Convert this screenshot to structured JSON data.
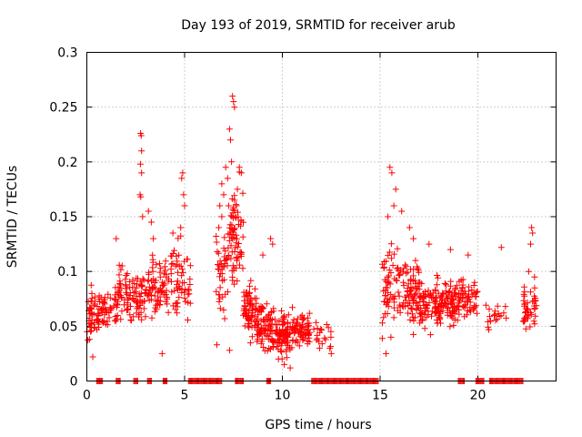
{
  "chart_data": {
    "type": "scatter",
    "title": "Day 193 of 2019, SRMTID for receiver arub",
    "xlabel": "GPS time / hours",
    "ylabel": "SRMTID / TECUs",
    "xlim": [
      0,
      24
    ],
    "ylim": [
      0,
      0.3
    ],
    "xticks": [
      0,
      5,
      10,
      15,
      20
    ],
    "xtick_labels": [
      "0",
      "5",
      "10",
      "15",
      "20"
    ],
    "yticks": [
      0,
      0.05,
      0.1,
      0.15,
      0.2,
      0.25,
      0.3
    ],
    "ytick_labels": [
      "0",
      "0.05",
      "0.1",
      "0.15",
      "0.2",
      "0.25",
      "0.3"
    ],
    "grid": true,
    "marker": "+",
    "color": "#ff0000",
    "series": [
      {
        "name": "SRMTID",
        "clusters": [
          {
            "x": [
              0.0,
              0.6
            ],
            "y": [
              0.025,
              0.1
            ],
            "n": 45
          },
          {
            "x": [
              0.6,
              1.6
            ],
            "y": [
              0.04,
              0.09
            ],
            "n": 55
          },
          {
            "x": [
              1.6,
              2.4
            ],
            "y": [
              0.04,
              0.12
            ],
            "n": 50
          },
          {
            "x": [
              2.4,
              3.1
            ],
            "y": [
              0.04,
              0.11
            ],
            "n": 45
          },
          {
            "x": [
              3.1,
              3.6
            ],
            "y": [
              0.05,
              0.13
            ],
            "n": 35
          },
          {
            "x": [
              3.6,
              4.3
            ],
            "y": [
              0.05,
              0.12
            ],
            "n": 40
          },
          {
            "x": [
              4.3,
              5.3
            ],
            "y": [
              0.04,
              0.14
            ],
            "n": 60
          },
          {
            "x": [
              6.6,
              7.3
            ],
            "y": [
              0.04,
              0.16
            ],
            "n": 45
          },
          {
            "x": [
              7.3,
              8.0
            ],
            "y": [
              0.06,
              0.2
            ],
            "n": 70
          },
          {
            "x": [
              8.0,
              8.7
            ],
            "y": [
              0.03,
              0.1
            ],
            "n": 70
          },
          {
            "x": [
              8.7,
              9.5
            ],
            "y": [
              0.02,
              0.08
            ],
            "n": 80
          },
          {
            "x": [
              9.5,
              10.5
            ],
            "y": [
              0.015,
              0.07
            ],
            "n": 90
          },
          {
            "x": [
              10.5,
              11.4
            ],
            "y": [
              0.025,
              0.07
            ],
            "n": 70
          },
          {
            "x": [
              11.4,
              12.5
            ],
            "y": [
              0.025,
              0.06
            ],
            "n": 20
          },
          {
            "x": [
              15.1,
              16.0
            ],
            "y": [
              0.03,
              0.14
            ],
            "n": 60
          },
          {
            "x": [
              16.0,
              17.0
            ],
            "y": [
              0.04,
              0.12
            ],
            "n": 80
          },
          {
            "x": [
              17.0,
              18.0
            ],
            "y": [
              0.04,
              0.1
            ],
            "n": 80
          },
          {
            "x": [
              18.0,
              19.0
            ],
            "y": [
              0.04,
              0.1
            ],
            "n": 80
          },
          {
            "x": [
              19.0,
              20.0
            ],
            "y": [
              0.05,
              0.1
            ],
            "n": 60
          },
          {
            "x": [
              20.4,
              21.5
            ],
            "y": [
              0.04,
              0.08
            ],
            "n": 20
          },
          {
            "x": [
              22.3,
              23.0
            ],
            "y": [
              0.04,
              0.09
            ],
            "n": 45
          }
        ],
        "points": [
          [
            2.75,
            0.226
          ],
          [
            2.78,
            0.224
          ],
          [
            2.8,
            0.21
          ],
          [
            2.74,
            0.198
          ],
          [
            2.8,
            0.19
          ],
          [
            2.72,
            0.17
          ],
          [
            2.76,
            0.168
          ],
          [
            2.85,
            0.15
          ],
          [
            3.3,
            0.145
          ],
          [
            3.4,
            0.13
          ],
          [
            1.5,
            0.13
          ],
          [
            3.15,
            0.155
          ],
          [
            4.85,
            0.185
          ],
          [
            4.9,
            0.19
          ],
          [
            4.95,
            0.17
          ],
          [
            5.0,
            0.16
          ],
          [
            4.8,
            0.14
          ],
          [
            4.4,
            0.135
          ],
          [
            7.45,
            0.26
          ],
          [
            7.5,
            0.255
          ],
          [
            7.55,
            0.25
          ],
          [
            7.3,
            0.23
          ],
          [
            7.35,
            0.22
          ],
          [
            7.4,
            0.2
          ],
          [
            7.1,
            0.195
          ],
          [
            7.2,
            0.185
          ],
          [
            6.9,
            0.18
          ],
          [
            7.0,
            0.17
          ],
          [
            7.8,
            0.195
          ],
          [
            7.9,
            0.19
          ],
          [
            7.7,
            0.175
          ],
          [
            7.65,
            0.16
          ],
          [
            6.8,
            0.16
          ],
          [
            6.9,
            0.15
          ],
          [
            6.75,
            0.14
          ],
          [
            7.25,
            0.16
          ],
          [
            9.0,
            0.115
          ],
          [
            9.4,
            0.13
          ],
          [
            9.5,
            0.125
          ],
          [
            15.5,
            0.195
          ],
          [
            15.6,
            0.19
          ],
          [
            15.8,
            0.175
          ],
          [
            15.7,
            0.16
          ],
          [
            16.1,
            0.155
          ],
          [
            15.4,
            0.15
          ],
          [
            16.5,
            0.14
          ],
          [
            16.7,
            0.13
          ],
          [
            17.5,
            0.125
          ],
          [
            18.6,
            0.12
          ],
          [
            19.5,
            0.115
          ],
          [
            22.75,
            0.14
          ],
          [
            22.8,
            0.135
          ],
          [
            22.7,
            0.125
          ],
          [
            22.6,
            0.1
          ],
          [
            22.9,
            0.095
          ],
          [
            21.2,
            0.122
          ],
          [
            10.4,
            0.012
          ],
          [
            10.1,
            0.015
          ],
          [
            9.8,
            0.02
          ],
          [
            15.3,
            0.025
          ],
          [
            12.5,
            0.025
          ],
          [
            11.9,
            0.03
          ],
          [
            0.3,
            0.022
          ],
          [
            3.85,
            0.025
          ],
          [
            7.3,
            0.028
          ],
          [
            6.65,
            0.033
          ]
        ]
      },
      {
        "name": "zero",
        "y": 0,
        "x_ranges": [
          [
            0.5,
            0.8
          ],
          [
            1.5,
            1.7
          ],
          [
            2.4,
            2.6
          ],
          [
            3.1,
            3.3
          ],
          [
            3.9,
            4.1
          ],
          [
            5.2,
            6.9
          ],
          [
            7.6,
            8.0
          ],
          [
            9.2,
            9.4
          ],
          [
            11.5,
            14.9
          ],
          [
            19.0,
            19.3
          ],
          [
            19.9,
            20.3
          ],
          [
            20.6,
            22.3
          ]
        ]
      }
    ]
  }
}
